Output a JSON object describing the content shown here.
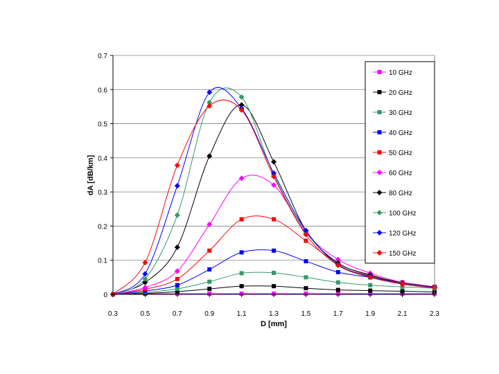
{
  "chart_data": {
    "type": "line",
    "title": "",
    "xlabel": "D [mm]",
    "ylabel": "dA [dB/km]",
    "xlim": [
      0.3,
      2.3
    ],
    "ylim": [
      0,
      0.7
    ],
    "x_ticks": [
      "0.3",
      "0.5",
      "0.7",
      "0.9",
      "1.1",
      "1.3",
      "1.5",
      "1.7",
      "1.9",
      "2.1",
      "2.3"
    ],
    "y_ticks": [
      "0",
      "0.1",
      "0.2",
      "0.3",
      "0.4",
      "0.5",
      "0.6",
      "0.7"
    ],
    "gridlines": "horizontal",
    "legend_position": "right",
    "x": [
      0.3,
      0.5,
      0.7,
      0.9,
      1.1,
      1.3,
      1.5,
      1.7,
      1.9,
      2.1,
      2.3
    ],
    "series": [
      {
        "name": "10 GHz",
        "color": "#ff00ff",
        "marker": "square",
        "values": [
          0,
          0.002,
          0.002,
          0.002,
          0.002,
          0.002,
          0.002,
          0.002,
          0.002,
          0.002,
          0.002
        ]
      },
      {
        "name": "20 GHz",
        "color": "#000000",
        "marker": "square",
        "values": [
          0,
          0.003,
          0.008,
          0.016,
          0.024,
          0.024,
          0.018,
          0.013,
          0.011,
          0.009,
          0.007
        ]
      },
      {
        "name": "30 GHz",
        "color": "#339966",
        "marker": "square",
        "values": [
          0,
          0.006,
          0.016,
          0.037,
          0.062,
          0.063,
          0.05,
          0.035,
          0.027,
          0.022,
          0.018
        ]
      },
      {
        "name": "40 GHz",
        "color": "#0000ff",
        "marker": "square",
        "values": [
          0,
          0.01,
          0.027,
          0.073,
          0.123,
          0.128,
          0.097,
          0.065,
          0.05,
          0.035,
          0.022
        ]
      },
      {
        "name": "50 GHz",
        "color": "#ff0000",
        "marker": "square",
        "values": [
          0,
          0.015,
          0.045,
          0.128,
          0.22,
          0.22,
          0.157,
          0.09,
          0.055,
          0.035,
          0.022
        ]
      },
      {
        "name": "60 GHz",
        "color": "#ff00ff",
        "marker": "diamond",
        "values": [
          0,
          0.02,
          0.068,
          0.205,
          0.34,
          0.32,
          0.18,
          0.102,
          0.062,
          0.035,
          0.022
        ]
      },
      {
        "name": "80 GHz",
        "color": "#000000",
        "marker": "diamond",
        "values": [
          0,
          0.035,
          0.138,
          0.405,
          0.555,
          0.388,
          0.187,
          0.092,
          0.057,
          0.033,
          0.021
        ]
      },
      {
        "name": "100 GHz",
        "color": "#339966",
        "marker": "diamond",
        "values": [
          0,
          0.045,
          0.232,
          0.562,
          0.578,
          0.35,
          0.183,
          0.088,
          0.053,
          0.032,
          0.02
        ]
      },
      {
        "name": "120 GHz",
        "color": "#0000ff",
        "marker": "diamond",
        "values": [
          0,
          0.06,
          0.318,
          0.592,
          0.545,
          0.355,
          0.187,
          0.087,
          0.052,
          0.031,
          0.02
        ]
      },
      {
        "name": "150 GHz",
        "color": "#ff0000",
        "marker": "diamond",
        "values": [
          0,
          0.093,
          0.378,
          0.552,
          0.54,
          0.345,
          0.175,
          0.085,
          0.05,
          0.03,
          0.019
        ]
      }
    ]
  }
}
